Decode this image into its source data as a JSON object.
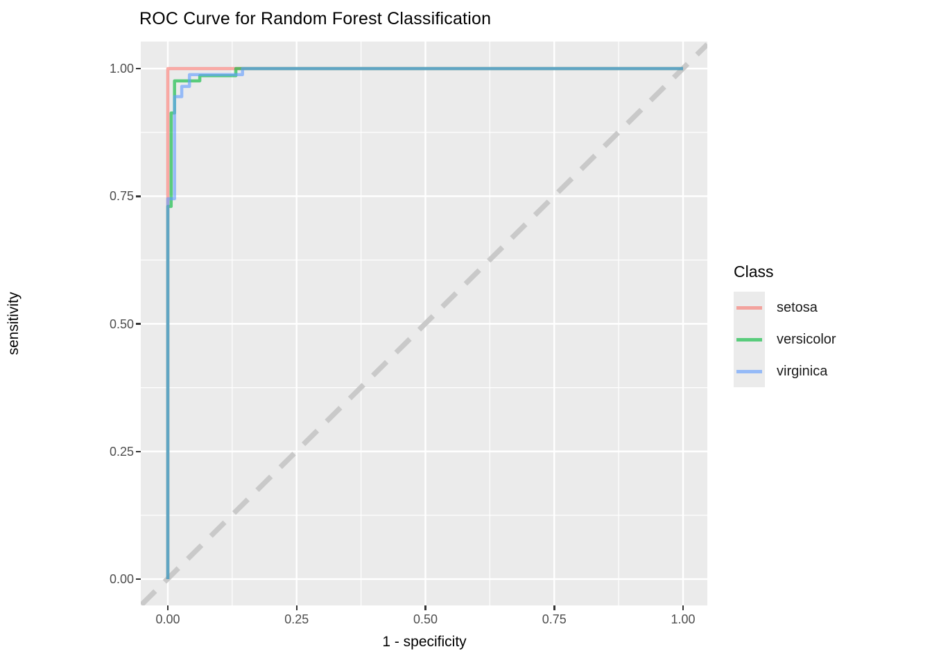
{
  "title": "ROC Curve for Random Forest Classification",
  "legend": {
    "title": "Class",
    "position": "right",
    "entries": [
      "setosa",
      "versicolor",
      "virginica"
    ]
  },
  "colors": {
    "background": "#FFFFFF",
    "panel_bg": "#EBEBEB",
    "grid_major": "#FFFFFF",
    "grid_minor": "#FFFFFF",
    "diagonal": "#C9C9C9",
    "tick_mark": "#333333",
    "tick_label": "#4D4D4D",
    "axis_title": "#000000"
  },
  "chart_data": {
    "type": "line",
    "subtype": "roc-step-curves",
    "title": "ROC Curve for Random Forest Classification",
    "xlabel": "1 - specificity",
    "ylabel": "sensitivity",
    "xlim": [
      0,
      1
    ],
    "ylim": [
      0,
      1
    ],
    "x_ticks": [
      0,
      0.25,
      0.5,
      0.75,
      1
    ],
    "x_tick_labels": [
      "0.00",
      "0.25",
      "0.50",
      "0.75",
      "1.00"
    ],
    "y_ticks": [
      0,
      0.25,
      0.5,
      0.75,
      1
    ],
    "y_tick_labels": [
      "0.00",
      "0.25",
      "0.50",
      "0.75",
      "1.00"
    ],
    "minor_ticks": [
      0.125,
      0.375,
      0.625,
      0.875
    ],
    "grid": "major and minor white gridlines on gray panel",
    "legend_position": "right",
    "reference_line": {
      "name": "chance-diagonal",
      "from": [
        0,
        0
      ],
      "to": [
        1,
        1
      ],
      "style": "dashed",
      "color": "#C9C9C9"
    },
    "series": [
      {
        "name": "setosa",
        "color": "rgba(248,118,109,0.62)",
        "points": [
          [
            0,
            0
          ],
          [
            0,
            1
          ],
          [
            1,
            1
          ]
        ]
      },
      {
        "name": "versicolor",
        "color": "rgba(0,186,56,0.62)",
        "points": [
          [
            0,
            0
          ],
          [
            0,
            0.73
          ],
          [
            0.0065,
            0.73
          ],
          [
            0.0065,
            0.913
          ],
          [
            0.013,
            0.913
          ],
          [
            0.013,
            0.976
          ],
          [
            0.062,
            0.976
          ],
          [
            0.062,
            0.986
          ],
          [
            0.132,
            0.986
          ],
          [
            0.132,
            1
          ],
          [
            1,
            1
          ]
        ]
      },
      {
        "name": "virginica",
        "color": "rgba(97,156,255,0.62)",
        "points": [
          [
            0,
            0
          ],
          [
            0,
            0.745
          ],
          [
            0.013,
            0.745
          ],
          [
            0.013,
            0.945
          ],
          [
            0.027,
            0.945
          ],
          [
            0.027,
            0.965
          ],
          [
            0.042,
            0.965
          ],
          [
            0.042,
            0.988
          ],
          [
            0.145,
            0.988
          ],
          [
            0.145,
            1
          ],
          [
            1,
            1
          ]
        ]
      }
    ]
  }
}
